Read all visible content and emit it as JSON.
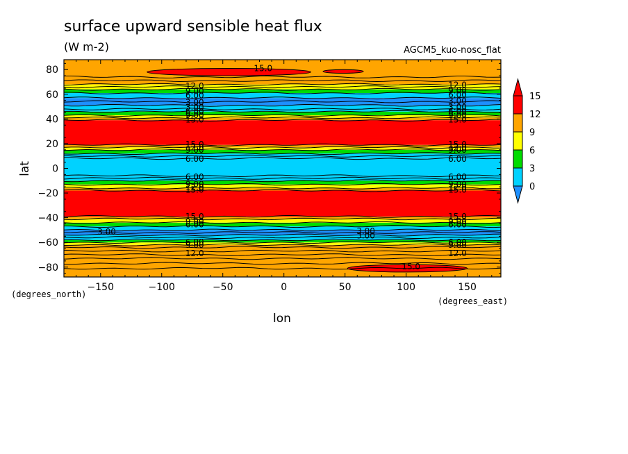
{
  "chart_data": {
    "type": "heatmap",
    "title": "surface upward sensible heat flux",
    "units": "(W m-2)",
    "model": "AGCM5_kuo-nosc_flat",
    "xlabel": "lon",
    "ylabel": "lat",
    "x_units_label": "(degrees_east)",
    "y_units_label": "(degrees_north)",
    "xlim": [
      -180,
      177.5
    ],
    "ylim": [
      -88,
      88
    ],
    "x_ticks": [
      -150,
      -100,
      -50,
      0,
      50,
      100,
      150
    ],
    "x_tick_labels": [
      "-150",
      "-100",
      "-50",
      "0",
      "50",
      "100",
      "150"
    ],
    "y_ticks": [
      -80,
      -60,
      -40,
      -20,
      0,
      20,
      40,
      60,
      80
    ],
    "y_tick_labels": [
      "-80",
      "-60",
      "-40",
      "-20",
      "0",
      "20",
      "40",
      "60",
      "80"
    ],
    "colorbar": {
      "levels": [
        0,
        3,
        6,
        9,
        12,
        15
      ],
      "tick_labels": [
        "0",
        "3",
        "6",
        "9",
        "12",
        "15"
      ],
      "colors": [
        "#1e90ff",
        "#00d2ff",
        "#00dc00",
        "#ffff00",
        "#ffa500",
        "#ff0000"
      ],
      "extend": "both"
    },
    "bands": [
      {
        "lat_min": -88,
        "lat_max": -62,
        "value": 13.5
      },
      {
        "lat_min": -62,
        "lat_max": -60,
        "value": 10.5
      },
      {
        "lat_min": -60,
        "lat_max": -58,
        "value": 7.5
      },
      {
        "lat_min": -58,
        "lat_max": -54,
        "value": 4.5
      },
      {
        "lat_min": -54,
        "lat_max": -50,
        "value": 1.5
      },
      {
        "lat_min": -50,
        "lat_max": -47,
        "value": 4.5
      },
      {
        "lat_min": -47,
        "lat_max": -44,
        "value": 7.5
      },
      {
        "lat_min": -44,
        "lat_max": -41,
        "value": 10.5
      },
      {
        "lat_min": -41,
        "lat_max": -39,
        "value": 13.5
      },
      {
        "lat_min": -39,
        "lat_max": -18,
        "value": 16.5
      },
      {
        "lat_min": -18,
        "lat_max": -16,
        "value": 13.5
      },
      {
        "lat_min": -16,
        "lat_max": -13,
        "value": 10.5
      },
      {
        "lat_min": -13,
        "lat_max": -10,
        "value": 7.5
      },
      {
        "lat_min": -10,
        "lat_max": -6,
        "value": 4.5
      },
      {
        "lat_min": -6,
        "lat_max": 8,
        "value": 4.0
      },
      {
        "lat_min": 8,
        "lat_max": 12,
        "value": 4.5
      },
      {
        "lat_min": 12,
        "lat_max": 15,
        "value": 7.5
      },
      {
        "lat_min": 15,
        "lat_max": 17,
        "value": 10.5
      },
      {
        "lat_min": 17,
        "lat_max": 19,
        "value": 13.5
      },
      {
        "lat_min": 19,
        "lat_max": 39,
        "value": 16.5
      },
      {
        "lat_min": 39,
        "lat_max": 41,
        "value": 13.5
      },
      {
        "lat_min": 41,
        "lat_max": 43,
        "value": 10.5
      },
      {
        "lat_min": 43,
        "lat_max": 46,
        "value": 7.5
      },
      {
        "lat_min": 46,
        "lat_max": 51,
        "value": 4.5
      },
      {
        "lat_min": 51,
        "lat_max": 57,
        "value": 1.5
      },
      {
        "lat_min": 57,
        "lat_max": 61,
        "value": 4.5
      },
      {
        "lat_min": 61,
        "lat_max": 64,
        "value": 7.5
      },
      {
        "lat_min": 64,
        "lat_max": 68,
        "value": 10.5
      },
      {
        "lat_min": 68,
        "lat_max": 88,
        "value": 13.5
      }
    ],
    "patches": [
      {
        "lon_min": -112,
        "lon_max": 22,
        "lat_min": 75,
        "lat_max": 81,
        "value": 16.5
      },
      {
        "lon_min": 32,
        "lon_max": 65,
        "lat_min": 77,
        "lat_max": 80,
        "value": 16.5
      },
      {
        "lon_min": 52,
        "lon_max": 150,
        "lat_min": -84,
        "lat_max": -78,
        "value": 16.5
      }
    ],
    "contour_lines_lat": [
      -81,
      -77,
      -73,
      -70,
      -67,
      -64,
      -62,
      -60,
      -58,
      -56,
      -54,
      -52,
      -50,
      -47,
      -44,
      -41,
      -39,
      -18,
      -16,
      -13,
      -10,
      -8,
      -6,
      8,
      10,
      12,
      15,
      17,
      19,
      39,
      41,
      43,
      46,
      48,
      51,
      54,
      57,
      61,
      64,
      66,
      68,
      71,
      74
    ],
    "contour_labels": [
      {
        "text": "15.0",
        "lon": -17,
        "lat": 81
      },
      {
        "text": "12.0",
        "lon": -73,
        "lat": 66.5
      },
      {
        "text": "9.00",
        "lon": -73,
        "lat": 62.5
      },
      {
        "text": "6.00",
        "lon": -73,
        "lat": 59
      },
      {
        "text": "3.00",
        "lon": -73,
        "lat": 53.5
      },
      {
        "text": "3.00",
        "lon": -73,
        "lat": 49.5
      },
      {
        "text": "6.00",
        "lon": -73,
        "lat": 46
      },
      {
        "text": "9.00",
        "lon": -73,
        "lat": 43
      },
      {
        "text": "15.0",
        "lon": -73,
        "lat": 39.5
      },
      {
        "text": "15.0",
        "lon": -73,
        "lat": 19.5
      },
      {
        "text": "12.0",
        "lon": -73,
        "lat": 17
      },
      {
        "text": "9.00",
        "lon": -73,
        "lat": 15
      },
      {
        "text": "6.00",
        "lon": -73,
        "lat": 7.5
      },
      {
        "text": "6.00",
        "lon": -73,
        "lat": -7
      },
      {
        "text": "9.00",
        "lon": -73,
        "lat": -13
      },
      {
        "text": "12.0",
        "lon": -73,
        "lat": -15.5
      },
      {
        "text": "15.0",
        "lon": -73,
        "lat": -17.5
      },
      {
        "text": "15.0",
        "lon": -73,
        "lat": -39
      },
      {
        "text": "9.00",
        "lon": -73,
        "lat": -43
      },
      {
        "text": "6.00",
        "lon": -73,
        "lat": -45.5
      },
      {
        "text": "3.00",
        "lon": -145,
        "lat": -51.5
      },
      {
        "text": "6.00",
        "lon": -73,
        "lat": -60
      },
      {
        "text": "9.00",
        "lon": -73,
        "lat": -62
      },
      {
        "text": "12.0",
        "lon": -73,
        "lat": -69
      },
      {
        "text": "12.0",
        "lon": 142,
        "lat": 67.5
      },
      {
        "text": "9.00",
        "lon": 142,
        "lat": 63
      },
      {
        "text": "6.00",
        "lon": 142,
        "lat": 59.5
      },
      {
        "text": "3.00",
        "lon": 142,
        "lat": 54.5
      },
      {
        "text": "3.00",
        "lon": 142,
        "lat": 49.5
      },
      {
        "text": "6.00",
        "lon": 142,
        "lat": 46
      },
      {
        "text": "9.00",
        "lon": 142,
        "lat": 43
      },
      {
        "text": "15.0",
        "lon": 142,
        "lat": 39.5
      },
      {
        "text": "15.0",
        "lon": 142,
        "lat": 19.5
      },
      {
        "text": "12.0",
        "lon": 142,
        "lat": 17
      },
      {
        "text": "9.00",
        "lon": 142,
        "lat": 15
      },
      {
        "text": "6.00",
        "lon": 142,
        "lat": 7.5
      },
      {
        "text": "6.00",
        "lon": 142,
        "lat": -7
      },
      {
        "text": "9.00",
        "lon": 142,
        "lat": -13
      },
      {
        "text": "12.0",
        "lon": 142,
        "lat": -15.5
      },
      {
        "text": "15.0",
        "lon": 142,
        "lat": -17.5
      },
      {
        "text": "15.0",
        "lon": 142,
        "lat": -39
      },
      {
        "text": "9.00",
        "lon": 142,
        "lat": -43
      },
      {
        "text": "6.00",
        "lon": 142,
        "lat": -45.5
      },
      {
        "text": "3.00",
        "lon": 67,
        "lat": -51
      },
      {
        "text": "3.00",
        "lon": 67,
        "lat": -54.5
      },
      {
        "text": "6.00",
        "lon": 142,
        "lat": -60
      },
      {
        "text": "9.00",
        "lon": 142,
        "lat": -62
      },
      {
        "text": "12.0",
        "lon": 142,
        "lat": -69
      },
      {
        "text": "15.0",
        "lon": 104,
        "lat": -79.5
      }
    ]
  }
}
